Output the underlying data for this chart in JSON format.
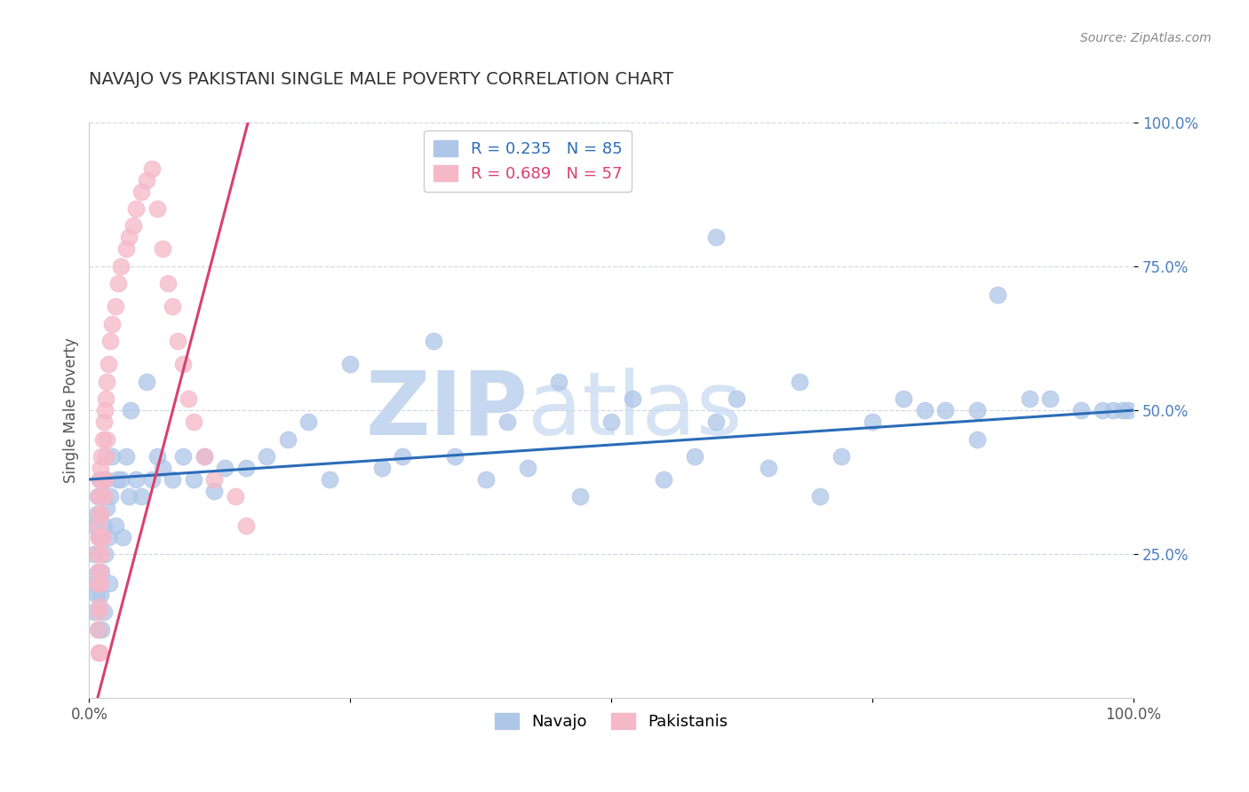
{
  "title": "NAVAJO VS PAKISTANI SINGLE MALE POVERTY CORRELATION CHART",
  "source": "Source: ZipAtlas.com",
  "ylabel": "Single Male Poverty",
  "xlim": [
    0,
    1
  ],
  "ylim": [
    0,
    1
  ],
  "xticks": [
    0,
    0.25,
    0.5,
    0.75,
    1.0
  ],
  "xticklabels": [
    "0.0%",
    "",
    "",
    "",
    "100.0%"
  ],
  "yticks": [
    0.25,
    0.5,
    0.75,
    1.0
  ],
  "yticklabels": [
    "25.0%",
    "50.0%",
    "75.0%",
    "100.0%"
  ],
  "navajo_R": 0.235,
  "navajo_N": 85,
  "pakistani_R": 0.689,
  "pakistani_N": 57,
  "navajo_color": "#aec6e8",
  "pakistani_color": "#f5b8c8",
  "navajo_line_color": "#2b6cb8",
  "pakistani_line_color": "#d94070",
  "watermark_zip": "ZIP",
  "watermark_atlas": "atlas",
  "watermark_color": "#c5d8f0",
  "background_color": "#ffffff",
  "navajo_x": [
    0.005,
    0.005,
    0.005,
    0.005,
    0.007,
    0.007,
    0.008,
    0.008,
    0.009,
    0.009,
    0.01,
    0.01,
    0.011,
    0.011,
    0.012,
    0.012,
    0.013,
    0.014,
    0.014,
    0.015,
    0.016,
    0.017,
    0.018,
    0.019,
    0.02,
    0.022,
    0.025,
    0.027,
    0.03,
    0.032,
    0.035,
    0.038,
    0.04,
    0.045,
    0.05,
    0.055,
    0.06,
    0.065,
    0.07,
    0.08,
    0.09,
    0.1,
    0.11,
    0.12,
    0.13,
    0.15,
    0.17,
    0.19,
    0.21,
    0.23,
    0.25,
    0.28,
    0.3,
    0.33,
    0.35,
    0.38,
    0.4,
    0.42,
    0.45,
    0.47,
    0.5,
    0.52,
    0.55,
    0.58,
    0.6,
    0.62,
    0.65,
    0.68,
    0.7,
    0.72,
    0.75,
    0.78,
    0.8,
    0.82,
    0.85,
    0.87,
    0.9,
    0.92,
    0.95,
    0.97,
    0.98,
    0.99,
    0.995,
    0.6,
    0.85
  ],
  "navajo_y": [
    0.3,
    0.25,
    0.2,
    0.15,
    0.32,
    0.18,
    0.35,
    0.22,
    0.28,
    0.12,
    0.38,
    0.28,
    0.32,
    0.18,
    0.22,
    0.12,
    0.35,
    0.3,
    0.15,
    0.25,
    0.38,
    0.33,
    0.28,
    0.2,
    0.35,
    0.42,
    0.3,
    0.38,
    0.38,
    0.28,
    0.42,
    0.35,
    0.5,
    0.38,
    0.35,
    0.55,
    0.38,
    0.42,
    0.4,
    0.38,
    0.42,
    0.38,
    0.42,
    0.36,
    0.4,
    0.4,
    0.42,
    0.45,
    0.48,
    0.38,
    0.58,
    0.4,
    0.42,
    0.62,
    0.42,
    0.38,
    0.48,
    0.4,
    0.55,
    0.35,
    0.48,
    0.52,
    0.38,
    0.42,
    0.48,
    0.52,
    0.4,
    0.55,
    0.35,
    0.42,
    0.48,
    0.52,
    0.5,
    0.5,
    0.45,
    0.7,
    0.52,
    0.52,
    0.5,
    0.5,
    0.5,
    0.5,
    0.5,
    0.8,
    0.5
  ],
  "pakistani_x": [
    0.008,
    0.008,
    0.008,
    0.008,
    0.009,
    0.009,
    0.009,
    0.009,
    0.009,
    0.01,
    0.01,
    0.01,
    0.01,
    0.01,
    0.01,
    0.011,
    0.011,
    0.011,
    0.012,
    0.012,
    0.012,
    0.013,
    0.013,
    0.013,
    0.014,
    0.014,
    0.015,
    0.015,
    0.016,
    0.016,
    0.017,
    0.017,
    0.018,
    0.02,
    0.022,
    0.025,
    0.028,
    0.03,
    0.035,
    0.038,
    0.042,
    0.045,
    0.05,
    0.055,
    0.06,
    0.065,
    0.07,
    0.075,
    0.08,
    0.085,
    0.09,
    0.095,
    0.1,
    0.11,
    0.12,
    0.14,
    0.15
  ],
  "pakistani_y": [
    0.3,
    0.25,
    0.2,
    0.12,
    0.35,
    0.28,
    0.22,
    0.15,
    0.08,
    0.38,
    0.32,
    0.28,
    0.22,
    0.16,
    0.08,
    0.4,
    0.32,
    0.2,
    0.42,
    0.35,
    0.25,
    0.45,
    0.38,
    0.28,
    0.48,
    0.35,
    0.5,
    0.38,
    0.52,
    0.42,
    0.55,
    0.45,
    0.58,
    0.62,
    0.65,
    0.68,
    0.72,
    0.75,
    0.78,
    0.8,
    0.82,
    0.85,
    0.88,
    0.9,
    0.92,
    0.85,
    0.78,
    0.72,
    0.68,
    0.62,
    0.58,
    0.52,
    0.48,
    0.42,
    0.38,
    0.35,
    0.3
  ],
  "navajo_trend_x0": 0.0,
  "navajo_trend_y0": 0.38,
  "navajo_trend_x1": 1.0,
  "navajo_trend_y1": 0.5,
  "pakistani_trend_x0": 0.008,
  "pakistani_trend_y0": 0.0,
  "pakistani_trend_x1": 0.155,
  "pakistani_trend_y1": 1.02
}
